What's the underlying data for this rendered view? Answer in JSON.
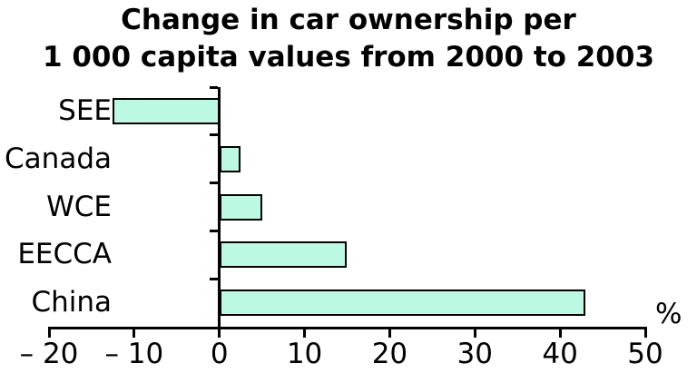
{
  "chart_data": {
    "type": "bar",
    "orientation": "horizontal",
    "title_lines": [
      "Change in car ownership per",
      "1 000 capita values from 2000 to 2003"
    ],
    "categories": [
      "SEE",
      "Canada",
      "WCE",
      "EECCA",
      "China"
    ],
    "values": [
      -12.5,
      2.5,
      5,
      15,
      43
    ],
    "xlim": [
      -20,
      50
    ],
    "x_ticks": [
      -20,
      -10,
      0,
      10,
      20,
      30,
      40,
      50
    ],
    "x_tick_labels": [
      "– 20",
      "– 10",
      "0",
      "10",
      "20",
      "30",
      "40",
      "50"
    ],
    "unit_label": "%",
    "grid": false,
    "legend": "none",
    "colors": {
      "bar_fill": "#bdf8e2",
      "bar_border": "#000000",
      "axis": "#000000",
      "text": "#000000",
      "background": "#ffffff"
    }
  }
}
